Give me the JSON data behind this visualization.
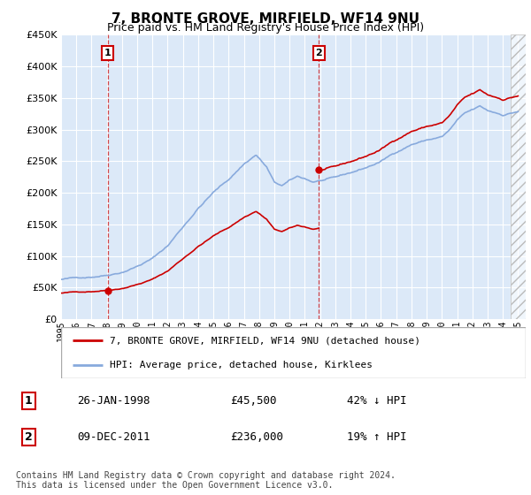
{
  "title": "7, BRONTE GROVE, MIRFIELD, WF14 9NU",
  "subtitle": "Price paid vs. HM Land Registry's House Price Index (HPI)",
  "legend_line1": "7, BRONTE GROVE, MIRFIELD, WF14 9NU (detached house)",
  "legend_line2": "HPI: Average price, detached house, Kirklees",
  "footnote": "Contains HM Land Registry data © Crown copyright and database right 2024.\nThis data is licensed under the Open Government Licence v3.0.",
  "sale1_date": "26-JAN-1998",
  "sale1_price": 45500,
  "sale1_hpi_diff": "42% ↓ HPI",
  "sale2_date": "09-DEC-2011",
  "sale2_price": 236000,
  "sale2_hpi_diff": "19% ↑ HPI",
  "sale1_year": 1998.07,
  "sale2_year": 2011.92,
  "ylim": [
    0,
    450000
  ],
  "xlim": [
    1995,
    2025.5
  ],
  "ylabel_ticks": [
    0,
    50000,
    100000,
    150000,
    200000,
    250000,
    300000,
    350000,
    400000,
    450000
  ],
  "bg_color": "#dce9f8",
  "red_color": "#cc0000",
  "blue_color": "#88aadd",
  "grid_color": "#c8d8e8",
  "marker_box_color": "#cc0000",
  "hatch_start": 2024.5
}
